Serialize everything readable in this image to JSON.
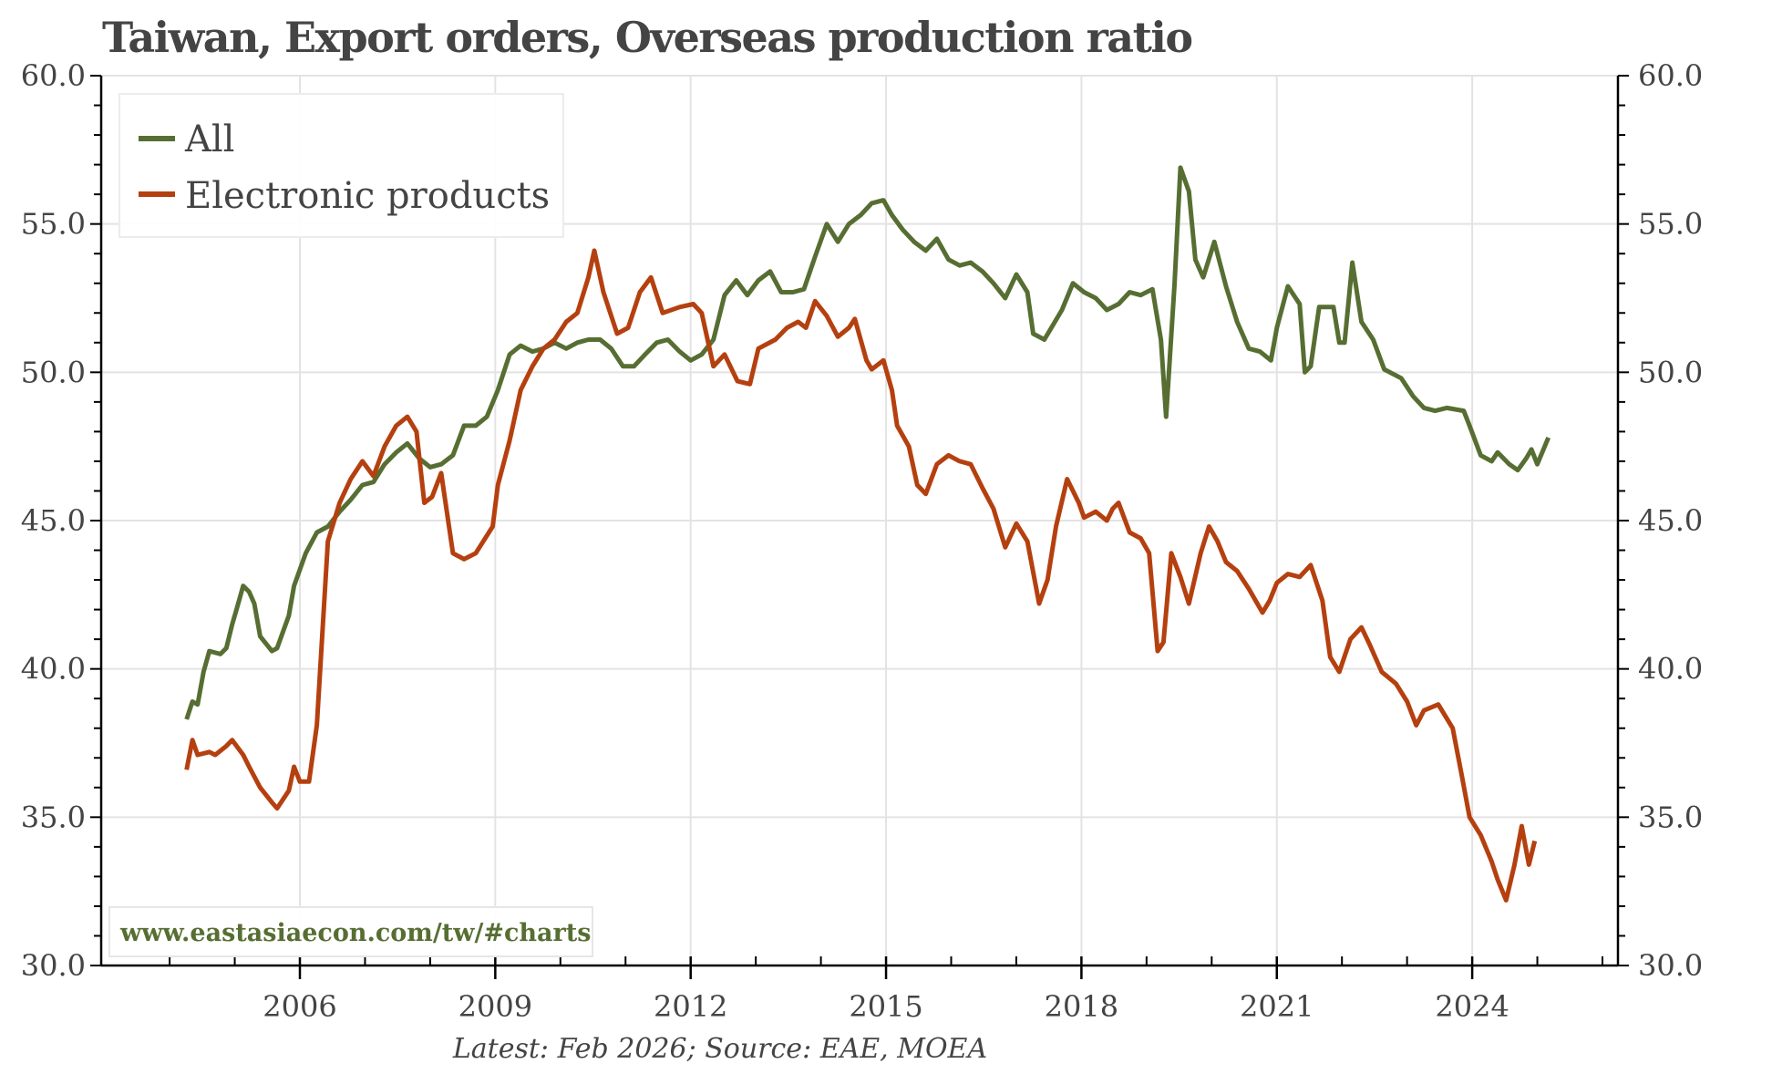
{
  "chart_data": {
    "type": "line",
    "title": "Taiwan, Export orders, Overseas production ratio",
    "xlabel": "",
    "ylabel": "",
    "ylim": [
      30,
      60
    ],
    "y_ticks": [
      "30.0",
      "35.0",
      "40.0",
      "45.0",
      "50.0",
      "55.0",
      "60.0"
    ],
    "y_tick_values": [
      30,
      35,
      40,
      45,
      50,
      55,
      60
    ],
    "x_ticks": [
      "2006",
      "2009",
      "2012",
      "2015",
      "2018",
      "2021",
      "2024"
    ],
    "x_tick_values": [
      2006,
      2009,
      2012,
      2015,
      2018,
      2021,
      2024
    ],
    "xlim": [
      2002.25,
      2025.5
    ],
    "grid": true,
    "legend_position": "top-left",
    "secondary_y_axis": "mirror of left axis (30.0–60.0)",
    "series": [
      {
        "name": "All",
        "color": "#576e32",
        "x": [
          2004.26,
          2004.35,
          2004.43,
          2004.52,
          2004.61,
          2004.78,
          2004.87,
          2004.96,
          2005.04,
          2005.13,
          2005.22,
          2005.3,
          2005.39,
          2005.57,
          2005.65,
          2005.83,
          2005.91,
          2006.09,
          2006.26,
          2006.43,
          2006.61,
          2006.78,
          2006.96,
          2007.13,
          2007.3,
          2007.48,
          2007.65,
          2007.83,
          2008.0,
          2008.17,
          2008.35,
          2008.52,
          2008.7,
          2008.87,
          2009.04,
          2009.22,
          2009.39,
          2009.57,
          2009.74,
          2009.91,
          2010.09,
          2010.26,
          2010.43,
          2010.61,
          2010.78,
          2010.96,
          2011.13,
          2011.3,
          2011.48,
          2011.65,
          2011.83,
          2012.0,
          2012.17,
          2012.35,
          2012.52,
          2012.7,
          2012.87,
          2013.04,
          2013.22,
          2013.39,
          2013.57,
          2013.74,
          2013.91,
          2014.09,
          2014.26,
          2014.43,
          2014.61,
          2014.78,
          2014.96,
          2015.09,
          2015.26,
          2015.43,
          2015.61,
          2015.78,
          2015.96,
          2016.13,
          2016.3,
          2016.48,
          2016.65,
          2016.83,
          2017.0,
          2017.17,
          2017.26,
          2017.43,
          2017.7,
          2017.87,
          2018.04,
          2018.22,
          2018.39,
          2018.57,
          2018.74,
          2018.91,
          2019.09,
          2019.22,
          2019.3,
          2019.43,
          2019.52,
          2019.65,
          2019.75,
          2019.87,
          2020.04,
          2020.22,
          2020.39,
          2020.57,
          2020.74,
          2020.91,
          2021.0,
          2021.17,
          2021.35,
          2021.43,
          2021.52,
          2021.65,
          2021.87,
          2021.96,
          2022.04,
          2022.16,
          2022.3,
          2022.48,
          2022.65,
          2022.91,
          2023.09,
          2023.26,
          2023.43,
          2023.61,
          2023.87,
          2023.96,
          2024.13,
          2024.3,
          2024.39,
          2024.57,
          2024.7,
          2024.83,
          2024.91,
          2025.0,
          2025.17
        ],
        "values": [
          38.3,
          38.9,
          38.8,
          39.9,
          40.6,
          40.5,
          40.7,
          41.5,
          42.1,
          42.8,
          42.6,
          42.2,
          41.1,
          40.6,
          40.7,
          41.8,
          42.8,
          43.9,
          44.6,
          44.8,
          45.3,
          45.7,
          46.2,
          46.3,
          46.9,
          47.3,
          47.6,
          47.1,
          46.8,
          46.9,
          47.2,
          48.2,
          48.2,
          48.5,
          49.4,
          50.6,
          50.9,
          50.7,
          50.8,
          51.0,
          50.8,
          51.0,
          51.1,
          51.1,
          50.8,
          50.2,
          50.2,
          50.6,
          51.0,
          51.1,
          50.7,
          50.4,
          50.6,
          51.1,
          52.6,
          53.1,
          52.6,
          53.1,
          53.4,
          52.7,
          52.7,
          52.8,
          53.9,
          55.0,
          54.4,
          55.0,
          55.3,
          55.7,
          55.8,
          55.3,
          54.8,
          54.4,
          54.1,
          54.5,
          53.8,
          53.6,
          53.7,
          53.4,
          53.0,
          52.5,
          53.3,
          52.7,
          51.3,
          51.1,
          52.1,
          53.0,
          52.7,
          52.5,
          52.1,
          52.3,
          52.7,
          52.6,
          52.8,
          51.1,
          48.5,
          53.0,
          56.9,
          56.1,
          53.8,
          53.2,
          54.4,
          52.9,
          51.7,
          50.8,
          50.7,
          50.4,
          51.5,
          52.9,
          52.3,
          50.0,
          50.2,
          52.2,
          52.2,
          51.0,
          51.0,
          53.7,
          51.7,
          51.1,
          50.1,
          49.8,
          49.2,
          48.8,
          48.7,
          48.8,
          48.7,
          48.2,
          47.2,
          47.0,
          47.3,
          46.9,
          46.7,
          47.1,
          47.4,
          46.9,
          47.8
        ]
      },
      {
        "name": "Electronic products",
        "color": "#b5400f",
        "x": [
          2004.26,
          2004.35,
          2004.43,
          2004.61,
          2004.7,
          2004.87,
          2004.96,
          2005.13,
          2005.22,
          2005.39,
          2005.57,
          2005.65,
          2005.83,
          2005.91,
          2006.0,
          2006.14,
          2006.26,
          2006.43,
          2006.61,
          2006.78,
          2006.96,
          2007.13,
          2007.3,
          2007.48,
          2007.65,
          2007.79,
          2007.91,
          2008.03,
          2008.17,
          2008.35,
          2008.52,
          2008.7,
          2008.96,
          2009.04,
          2009.22,
          2009.39,
          2009.57,
          2009.74,
          2009.91,
          2010.09,
          2010.26,
          2010.43,
          2010.52,
          2010.66,
          2010.87,
          2011.04,
          2011.22,
          2011.39,
          2011.57,
          2011.83,
          2012.04,
          2012.17,
          2012.35,
          2012.52,
          2012.72,
          2012.91,
          2013.04,
          2013.3,
          2013.48,
          2013.65,
          2013.77,
          2013.91,
          2014.09,
          2014.26,
          2014.43,
          2014.52,
          2014.7,
          2014.78,
          2014.96,
          2015.09,
          2015.17,
          2015.35,
          2015.48,
          2015.61,
          2015.78,
          2015.96,
          2016.13,
          2016.3,
          2016.48,
          2016.65,
          2016.83,
          2017.0,
          2017.17,
          2017.35,
          2017.48,
          2017.61,
          2017.78,
          2017.96,
          2018.04,
          2018.22,
          2018.39,
          2018.48,
          2018.57,
          2018.74,
          2018.91,
          2019.04,
          2019.17,
          2019.26,
          2019.38,
          2019.52,
          2019.65,
          2019.83,
          2019.96,
          2020.09,
          2020.22,
          2020.39,
          2020.57,
          2020.78,
          2020.89,
          2021.0,
          2021.17,
          2021.35,
          2021.52,
          2021.7,
          2021.82,
          2021.96,
          2022.13,
          2022.3,
          2022.43,
          2022.61,
          2022.83,
          2023.0,
          2023.14,
          2023.26,
          2023.48,
          2023.7,
          2023.84,
          2023.96,
          2024.13,
          2024.3,
          2024.39,
          2024.52,
          2024.65,
          2024.76,
          2024.87,
          2024.96
        ],
        "values": [
          36.6,
          37.6,
          37.1,
          37.2,
          37.1,
          37.4,
          37.6,
          37.1,
          36.7,
          36.0,
          35.5,
          35.3,
          35.9,
          36.7,
          36.2,
          36.2,
          38.1,
          44.3,
          45.6,
          46.4,
          47.0,
          46.5,
          47.5,
          48.2,
          48.5,
          48.0,
          45.6,
          45.8,
          46.6,
          43.9,
          43.7,
          43.9,
          44.8,
          46.2,
          47.7,
          49.4,
          50.2,
          50.8,
          51.1,
          51.7,
          52.0,
          53.2,
          54.1,
          52.7,
          51.3,
          51.5,
          52.7,
          53.2,
          52.0,
          52.2,
          52.3,
          52.0,
          50.2,
          50.6,
          49.7,
          49.6,
          50.8,
          51.1,
          51.5,
          51.7,
          51.5,
          52.4,
          51.9,
          51.2,
          51.5,
          51.8,
          50.4,
          50.1,
          50.4,
          49.4,
          48.2,
          47.5,
          46.2,
          45.9,
          46.9,
          47.2,
          47.0,
          46.9,
          46.1,
          45.4,
          44.1,
          44.9,
          44.3,
          42.2,
          43.0,
          44.8,
          46.4,
          45.6,
          45.1,
          45.3,
          45.0,
          45.4,
          45.6,
          44.6,
          44.4,
          43.9,
          40.6,
          40.9,
          43.9,
          43.1,
          42.2,
          43.9,
          44.8,
          44.3,
          43.6,
          43.3,
          42.7,
          41.9,
          42.3,
          42.9,
          43.2,
          43.1,
          43.5,
          42.3,
          40.4,
          39.9,
          41.0,
          41.4,
          40.8,
          39.9,
          39.5,
          38.9,
          38.1,
          38.6,
          38.8,
          38.0,
          36.4,
          35.0,
          34.4,
          33.5,
          32.9,
          32.2,
          33.4,
          34.7,
          33.4,
          34.2
        ]
      }
    ]
  },
  "legend": {
    "items": [
      {
        "label": "All",
        "color": "#576e32"
      },
      {
        "label": "Electronic products",
        "color": "#b5400f"
      }
    ]
  },
  "watermark": "www.eastasiaecon.com/tw/#charts",
  "footer": "Latest: Feb 2026; Source: EAE, MOEA",
  "colors": {
    "text": "#444444",
    "grid": "#e3e3e3",
    "axis": "#000000",
    "brand_green": "#576e32"
  }
}
